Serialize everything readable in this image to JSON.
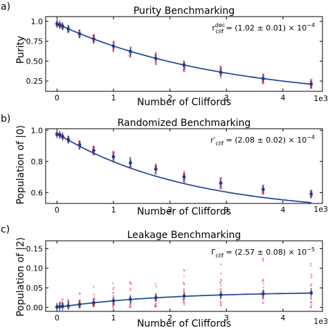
{
  "chart_data": [
    {
      "type": "scatter",
      "panel_label": "a)",
      "title": "Purity Benchmarking",
      "xlabel": "Number of Cliffords",
      "ylabel": "Purity",
      "x_multiplier_label": "1e3",
      "annotation": "r_clif^dec = (1.02 ± 0.01) × 10^-4",
      "xlim": [
        -0.2,
        4.7
      ],
      "ylim": [
        0.12,
        1.06
      ],
      "xticks": [
        0,
        1,
        2,
        3,
        4
      ],
      "yticks": [
        0.25,
        0.5,
        0.75,
        1.0
      ],
      "ytick_labels": [
        "0.25",
        "0.50",
        "0.75",
        "1.0"
      ],
      "fit_curve": {
        "model": "A*exp(-B*x)",
        "A": 0.97,
        "B": 0.34
      },
      "series": [
        {
          "type": "line",
          "role": "fit"
        },
        {
          "type": "scatter",
          "role": "samples"
        },
        {
          "type": "errorbar",
          "role": "mean",
          "x": [
            0,
            0.05,
            0.1,
            0.2,
            0.4,
            0.65,
            1.0,
            1.3,
            1.75,
            2.25,
            2.9,
            3.65,
            4.5
          ],
          "y": [
            0.97,
            0.955,
            0.94,
            0.905,
            0.845,
            0.78,
            0.69,
            0.62,
            0.535,
            0.45,
            0.36,
            0.28,
            0.21
          ],
          "spread": [
            0.03,
            0.03,
            0.035,
            0.04,
            0.05,
            0.06,
            0.07,
            0.07,
            0.075,
            0.075,
            0.075,
            0.07,
            0.06
          ]
        }
      ]
    },
    {
      "type": "scatter",
      "panel_label": "b)",
      "title": "Randomized Benchmarking",
      "xlabel": "Number of Cliffords",
      "ylabel": "Population of |0⟩",
      "x_multiplier_label": "1e3",
      "annotation": "r′_clif = (2.08 ± 0.02) × 10^-4",
      "xlim": [
        -0.2,
        4.7
      ],
      "ylim": [
        0.53,
        1.01
      ],
      "xticks": [
        0,
        1,
        2,
        3,
        4
      ],
      "yticks": [
        0.6,
        0.8,
        1.0
      ],
      "ytick_labels": [
        "0.6",
        "0.8",
        "1.0"
      ],
      "fit_curve": {
        "model": "A*exp(-B*x)+C",
        "A": 0.52,
        "B": 0.43,
        "C": 0.46
      },
      "series": [
        {
          "type": "line",
          "role": "fit"
        },
        {
          "type": "scatter",
          "role": "samples"
        },
        {
          "type": "errorbar",
          "role": "mean",
          "x": [
            0,
            0.05,
            0.1,
            0.2,
            0.4,
            0.65,
            1.0,
            1.3,
            1.75,
            2.25,
            2.9,
            3.65,
            4.5
          ],
          "y": [
            0.975,
            0.97,
            0.96,
            0.94,
            0.905,
            0.87,
            0.83,
            0.79,
            0.75,
            0.7,
            0.66,
            0.62,
            0.59
          ],
          "spread": [
            0.01,
            0.012,
            0.015,
            0.02,
            0.025,
            0.03,
            0.035,
            0.035,
            0.035,
            0.035,
            0.035,
            0.03,
            0.025
          ]
        }
      ]
    },
    {
      "type": "scatter",
      "panel_label": "c)",
      "title": "Leakage Benchmarking",
      "xlabel": "Number of Cliffords",
      "ylabel": "Population of |2⟩",
      "x_multiplier_label": "1e3",
      "annotation": "Γ_clif = (2.57 ± 0.08) × 10^-5",
      "xlim": [
        -0.2,
        4.7
      ],
      "ylim": [
        -0.01,
        0.17
      ],
      "xticks": [
        0,
        1,
        2,
        3,
        4
      ],
      "yticks": [
        0.0,
        0.05,
        0.1,
        0.15
      ],
      "ytick_labels": [
        "0.00",
        "0.05",
        "0.10",
        "0.15"
      ],
      "fit_curve": {
        "model": "A*(1-exp(-B*x))",
        "A": 0.04,
        "B": 0.55
      },
      "series": [
        {
          "type": "line",
          "role": "fit"
        },
        {
          "type": "scatter",
          "role": "samples"
        },
        {
          "type": "errorbar",
          "role": "mean",
          "x": [
            0,
            0.05,
            0.1,
            0.2,
            0.4,
            0.65,
            1.0,
            1.3,
            1.75,
            2.25,
            2.9,
            3.65,
            4.5
          ],
          "y": [
            0.001,
            0.002,
            0.003,
            0.004,
            0.008,
            0.012,
            0.017,
            0.021,
            0.025,
            0.029,
            0.032,
            0.035,
            0.037
          ],
          "spread_low": [
            0.001,
            0.002,
            0.003,
            0.004,
            0.008,
            0.012,
            0.017,
            0.021,
            0.025,
            0.029,
            0.032,
            0.035,
            0.037
          ],
          "spread_high": [
            0.01,
            0.02,
            0.025,
            0.03,
            0.04,
            0.05,
            0.07,
            0.09,
            0.1,
            0.11,
            0.11,
            0.11,
            0.1
          ]
        }
      ]
    }
  ]
}
